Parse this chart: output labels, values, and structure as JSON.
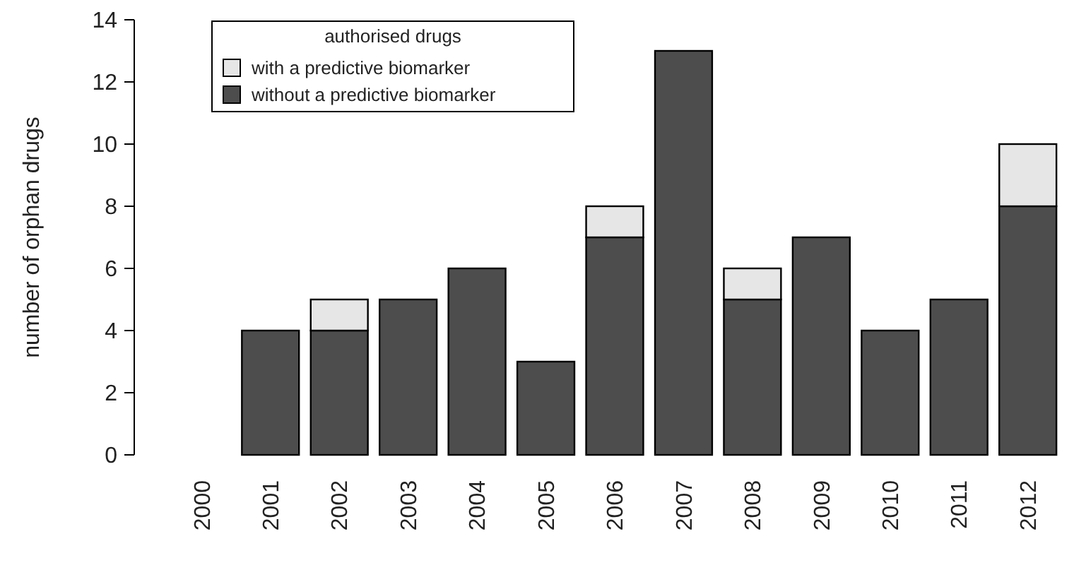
{
  "chart_data": {
    "type": "bar",
    "stacked": true,
    "ylabel": "number of orphan drugs",
    "legend_title": "authorised drugs",
    "legend": "top left",
    "categories": [
      "2000",
      "2001",
      "2002",
      "2003",
      "2004",
      "2005",
      "2006",
      "2007",
      "2008",
      "2009",
      "2010",
      "2011",
      "2012"
    ],
    "series": [
      {
        "name": "without a predictive biomarker",
        "color": "#4d4d4d",
        "values": [
          0,
          4,
          4,
          5,
          6,
          3,
          7,
          13,
          5,
          7,
          4,
          5,
          8
        ]
      },
      {
        "name": "with a predictive biomarker",
        "color": "#e6e6e6",
        "values": [
          0,
          0,
          1,
          0,
          0,
          0,
          1,
          0,
          1,
          0,
          0,
          0,
          2
        ]
      }
    ],
    "ylim": [
      0,
      14
    ],
    "yticks": [
      0,
      2,
      4,
      6,
      8,
      10,
      12,
      14
    ],
    "grid": false
  }
}
